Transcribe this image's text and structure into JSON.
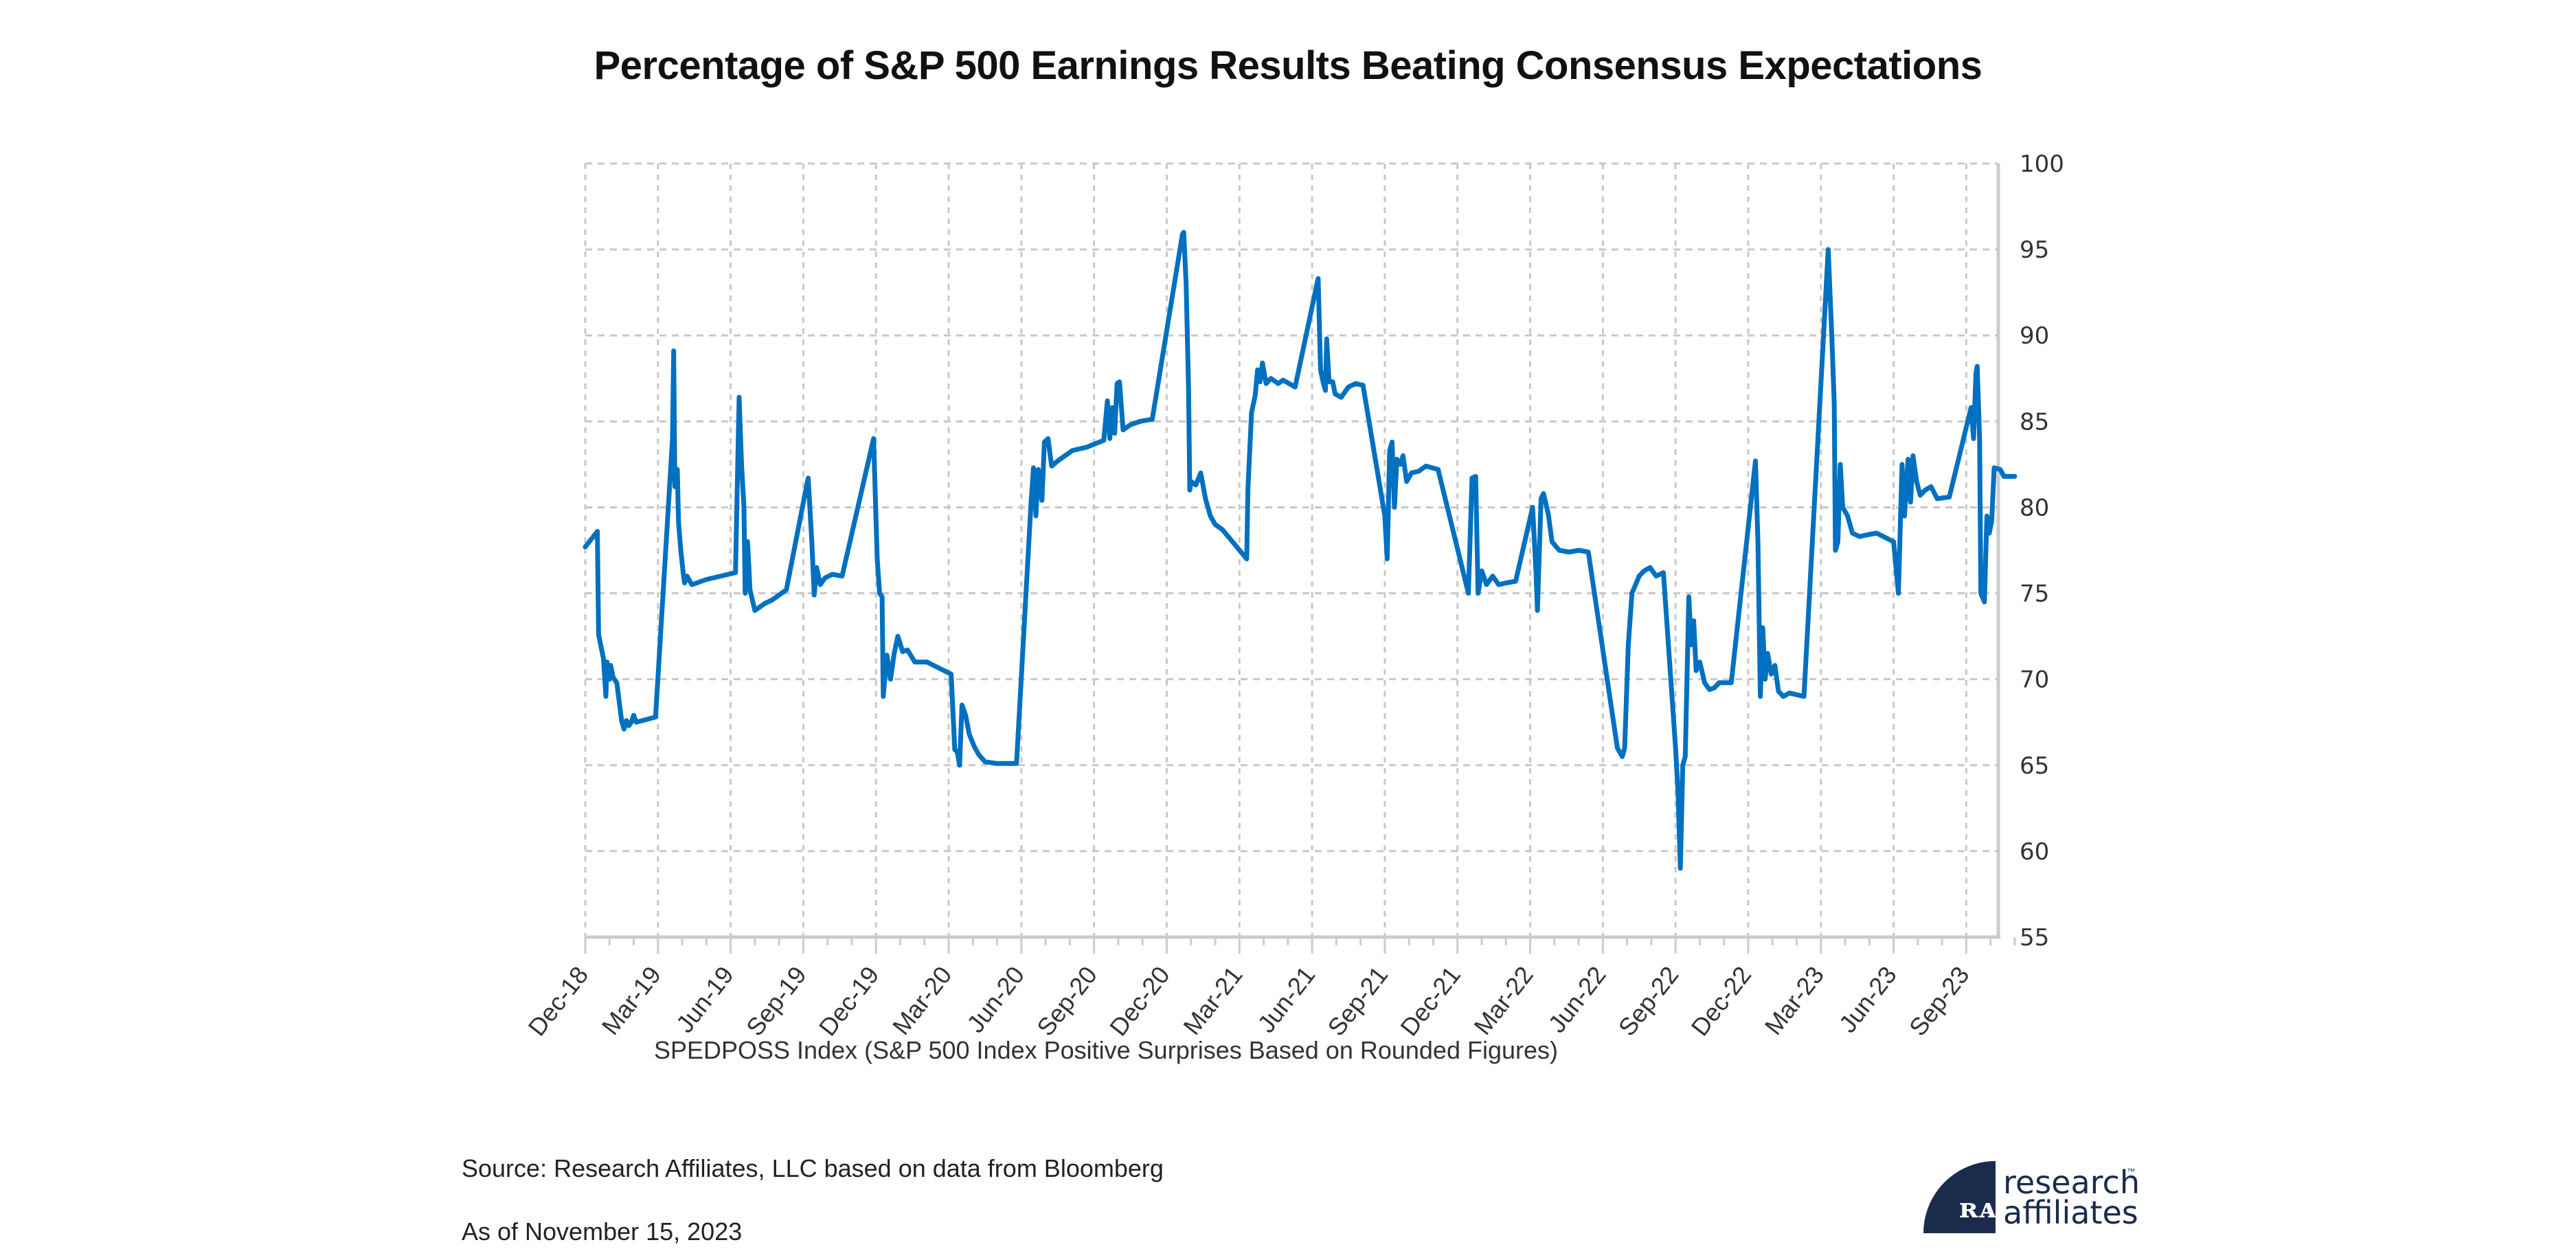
{
  "title": "Percentage of S&P 500 Earnings Results Beating Consensus Expectations",
  "source": "Source: Research Affiliates, LLC based on data from Bloomberg",
  "as_of": "As of November 15, 2023",
  "logo": {
    "line1": "research",
    "line2": "affiliates",
    "tm": "™",
    "mark": "ʀᴀ"
  },
  "colors": {
    "line": "#0070C0",
    "grid": "#C8C8C8",
    "axis": "#CCCCCC",
    "logo": "#1A2B4C"
  },
  "chart_data": {
    "type": "line",
    "title": "Percentage of S&P 500 Earnings Results Beating Consensus Expectations",
    "xlabel": "SPEDPOSS Index (S&P 500 Index Positive Surprises Based on Rounded Figures)",
    "ylabel": "",
    "x_unit": "months since Dec-18",
    "xlim": [
      0,
      59.5
    ],
    "ylim": [
      55,
      100
    ],
    "y_ticks": [
      55,
      60,
      65,
      70,
      75,
      80,
      85,
      90,
      95,
      100
    ],
    "y_axis_position": "right",
    "x_tick_labels": [
      "Dec-18",
      "Mar-19",
      "Jun-19",
      "Sep-19",
      "Dec-19",
      "Mar-20",
      "Jun-20",
      "Sep-20",
      "Dec-20",
      "Mar-21",
      "Jun-21",
      "Sep-21",
      "Dec-21",
      "Mar-22",
      "Jun-22",
      "Sep-22",
      "Dec-22",
      "Mar-23",
      "Jun-23",
      "Sep-23"
    ],
    "x_tick_months": [
      0,
      3,
      6,
      9,
      12,
      15,
      18,
      21,
      24,
      27,
      30,
      33,
      36,
      39,
      42,
      45,
      48,
      51,
      54,
      57
    ],
    "grid": true,
    "legend": "none",
    "series": [
      {
        "name": "SPEDPOSS Index",
        "points": [
          [
            0.0,
            77.7
          ],
          [
            0.5,
            78.6
          ],
          [
            0.55,
            72.6
          ],
          [
            0.75,
            71.2
          ],
          [
            0.85,
            69.0
          ],
          [
            0.9,
            71.0
          ],
          [
            1.0,
            70.0
          ],
          [
            1.05,
            70.8
          ],
          [
            1.15,
            70.1
          ],
          [
            1.3,
            69.8
          ],
          [
            1.5,
            67.6
          ],
          [
            1.6,
            67.1
          ],
          [
            1.7,
            67.6
          ],
          [
            1.8,
            67.3
          ],
          [
            1.9,
            67.5
          ],
          [
            2.0,
            67.9
          ],
          [
            2.1,
            67.5
          ],
          [
            2.9,
            67.8
          ],
          [
            3.6,
            84.0
          ],
          [
            3.65,
            89.1
          ],
          [
            3.7,
            81.2
          ],
          [
            3.8,
            82.2
          ],
          [
            3.85,
            79.1
          ],
          [
            3.95,
            77.4
          ],
          [
            4.05,
            76.1
          ],
          [
            4.1,
            75.6
          ],
          [
            4.2,
            76.0
          ],
          [
            4.4,
            75.5
          ],
          [
            4.6,
            75.6
          ],
          [
            4.8,
            75.7
          ],
          [
            5.0,
            75.8
          ],
          [
            5.3,
            75.9
          ],
          [
            6.2,
            76.2
          ],
          [
            6.3,
            83.0
          ],
          [
            6.35,
            86.4
          ],
          [
            6.45,
            82.5
          ],
          [
            6.55,
            80.0
          ],
          [
            6.6,
            75.0
          ],
          [
            6.7,
            78.0
          ],
          [
            6.8,
            75.2
          ],
          [
            7.0,
            74.0
          ],
          [
            7.2,
            74.2
          ],
          [
            7.4,
            74.4
          ],
          [
            7.7,
            74.6
          ],
          [
            8.3,
            75.2
          ],
          [
            9.1,
            81.0
          ],
          [
            9.2,
            81.7
          ],
          [
            9.35,
            78.0
          ],
          [
            9.45,
            74.9
          ],
          [
            9.55,
            76.5
          ],
          [
            9.7,
            75.5
          ],
          [
            9.9,
            75.9
          ],
          [
            10.2,
            76.1
          ],
          [
            10.6,
            76.0
          ],
          [
            11.9,
            84.0
          ],
          [
            12.05,
            77.0
          ],
          [
            12.15,
            75.0
          ],
          [
            12.25,
            74.8
          ],
          [
            12.3,
            69.0
          ],
          [
            12.45,
            71.4
          ],
          [
            12.6,
            70.0
          ],
          [
            12.75,
            71.5
          ],
          [
            12.9,
            72.5
          ],
          [
            13.1,
            71.6
          ],
          [
            13.3,
            71.7
          ],
          [
            13.6,
            71.0
          ],
          [
            14.1,
            71.0
          ],
          [
            15.1,
            70.3
          ],
          [
            15.25,
            65.9
          ],
          [
            15.35,
            65.8
          ],
          [
            15.45,
            65.0
          ],
          [
            15.55,
            68.5
          ],
          [
            15.7,
            67.9
          ],
          [
            15.85,
            66.8
          ],
          [
            16.05,
            66.1
          ],
          [
            16.25,
            65.6
          ],
          [
            16.5,
            65.2
          ],
          [
            17.0,
            65.1
          ],
          [
            17.8,
            65.1
          ],
          [
            18.4,
            80.3
          ],
          [
            18.5,
            82.3
          ],
          [
            18.6,
            79.5
          ],
          [
            18.7,
            82.2
          ],
          [
            18.85,
            80.4
          ],
          [
            18.95,
            83.8
          ],
          [
            19.1,
            84.0
          ],
          [
            19.25,
            82.4
          ],
          [
            19.5,
            82.7
          ],
          [
            19.8,
            83.0
          ],
          [
            20.1,
            83.3
          ],
          [
            20.7,
            83.5
          ],
          [
            21.4,
            83.9
          ],
          [
            21.55,
            86.2
          ],
          [
            21.65,
            84.0
          ],
          [
            21.75,
            85.8
          ],
          [
            21.85,
            84.3
          ],
          [
            21.95,
            87.2
          ],
          [
            22.05,
            87.3
          ],
          [
            22.2,
            84.5
          ],
          [
            22.5,
            84.8
          ],
          [
            22.9,
            85.0
          ],
          [
            23.3,
            85.1
          ],
          [
            23.4,
            85.1
          ],
          [
            24.65,
            95.9
          ],
          [
            24.7,
            96.0
          ],
          [
            24.8,
            93.0
          ],
          [
            24.9,
            87.0
          ],
          [
            24.95,
            81.0
          ],
          [
            25.0,
            81.5
          ],
          [
            25.2,
            81.3
          ],
          [
            25.4,
            82.0
          ],
          [
            25.6,
            80.5
          ],
          [
            25.8,
            79.5
          ],
          [
            26.0,
            79.0
          ],
          [
            26.3,
            78.7
          ],
          [
            27.3,
            77.0
          ],
          [
            27.35,
            81.0
          ],
          [
            27.5,
            85.5
          ],
          [
            27.65,
            86.5
          ],
          [
            27.75,
            88.0
          ],
          [
            27.85,
            87.3
          ],
          [
            27.95,
            88.4
          ],
          [
            28.1,
            87.2
          ],
          [
            28.3,
            87.5
          ],
          [
            28.6,
            87.2
          ],
          [
            28.8,
            87.4
          ],
          [
            29.3,
            87.0
          ],
          [
            30.2,
            93.0
          ],
          [
            30.25,
            93.3
          ],
          [
            30.35,
            88.0
          ],
          [
            30.45,
            87.3
          ],
          [
            30.55,
            86.8
          ],
          [
            30.6,
            89.8
          ],
          [
            30.7,
            87.3
          ],
          [
            30.85,
            87.3
          ],
          [
            30.95,
            86.6
          ],
          [
            31.2,
            86.4
          ],
          [
            31.5,
            87.0
          ],
          [
            31.8,
            87.2
          ],
          [
            32.1,
            87.1
          ],
          [
            33.0,
            79.5
          ],
          [
            33.1,
            77.0
          ],
          [
            33.2,
            83.3
          ],
          [
            33.3,
            83.8
          ],
          [
            33.4,
            80.0
          ],
          [
            33.5,
            82.8
          ],
          [
            33.65,
            82.5
          ],
          [
            33.75,
            83.0
          ],
          [
            33.9,
            81.5
          ],
          [
            34.1,
            82.0
          ],
          [
            34.4,
            82.1
          ],
          [
            34.7,
            82.4
          ],
          [
            35.2,
            82.2
          ],
          [
            36.45,
            75.0
          ],
          [
            36.6,
            81.7
          ],
          [
            36.75,
            81.8
          ],
          [
            36.85,
            75.0
          ],
          [
            37.0,
            76.3
          ],
          [
            37.2,
            75.5
          ],
          [
            37.45,
            76.0
          ],
          [
            37.7,
            75.5
          ],
          [
            38.0,
            75.6
          ],
          [
            38.4,
            75.7
          ],
          [
            39.1,
            80.0
          ],
          [
            39.25,
            76.0
          ],
          [
            39.3,
            74.0
          ],
          [
            39.45,
            80.5
          ],
          [
            39.55,
            80.8
          ],
          [
            39.75,
            79.6
          ],
          [
            39.9,
            78.0
          ],
          [
            40.2,
            77.5
          ],
          [
            40.6,
            77.4
          ],
          [
            41.0,
            77.5
          ],
          [
            41.4,
            77.4
          ],
          [
            42.6,
            66.0
          ],
          [
            42.8,
            65.5
          ],
          [
            42.9,
            66.0
          ],
          [
            43.0,
            70.0
          ],
          [
            43.05,
            72.0
          ],
          [
            43.2,
            75.0
          ],
          [
            43.35,
            75.5
          ],
          [
            43.5,
            76.0
          ],
          [
            43.7,
            76.3
          ],
          [
            43.95,
            76.5
          ],
          [
            44.2,
            76.0
          ],
          [
            44.5,
            76.2
          ],
          [
            45.0,
            66.0
          ],
          [
            45.1,
            63.5
          ],
          [
            45.2,
            59.0
          ],
          [
            45.3,
            65.0
          ],
          [
            45.4,
            65.5
          ],
          [
            45.55,
            74.8
          ],
          [
            45.65,
            72.0
          ],
          [
            45.75,
            73.4
          ],
          [
            45.85,
            70.5
          ],
          [
            46.0,
            71.0
          ],
          [
            46.2,
            69.8
          ],
          [
            46.4,
            69.4
          ],
          [
            46.6,
            69.5
          ],
          [
            46.8,
            69.8
          ],
          [
            47.3,
            69.8
          ],
          [
            48.3,
            82.7
          ],
          [
            48.4,
            78.0
          ],
          [
            48.5,
            69.0
          ],
          [
            48.6,
            73.0
          ],
          [
            48.7,
            70.0
          ],
          [
            48.8,
            71.5
          ],
          [
            48.95,
            70.3
          ],
          [
            49.1,
            70.8
          ],
          [
            49.25,
            69.3
          ],
          [
            49.45,
            69.0
          ],
          [
            49.7,
            69.2
          ],
          [
            50.3,
            69.0
          ],
          [
            51.3,
            95.0
          ],
          [
            51.45,
            90.0
          ],
          [
            51.55,
            86.0
          ],
          [
            51.6,
            77.5
          ],
          [
            51.7,
            78.0
          ],
          [
            51.8,
            82.5
          ],
          [
            51.9,
            80.0
          ],
          [
            52.1,
            79.5
          ],
          [
            52.3,
            78.5
          ],
          [
            52.6,
            78.3
          ],
          [
            52.9,
            78.4
          ],
          [
            53.3,
            78.5
          ],
          [
            54.0,
            78.0
          ],
          [
            54.2,
            75.0
          ],
          [
            54.35,
            82.5
          ],
          [
            54.45,
            79.5
          ],
          [
            54.6,
            82.8
          ],
          [
            54.7,
            80.3
          ],
          [
            54.8,
            83.0
          ],
          [
            54.95,
            81.5
          ],
          [
            55.1,
            80.7
          ],
          [
            55.3,
            81.0
          ],
          [
            55.55,
            81.2
          ],
          [
            55.8,
            80.5
          ],
          [
            56.3,
            80.6
          ],
          [
            57.2,
            85.8
          ],
          [
            57.3,
            84.0
          ],
          [
            57.4,
            87.8
          ],
          [
            57.45,
            88.2
          ],
          [
            57.55,
            84.0
          ],
          [
            57.6,
            75.0
          ],
          [
            57.75,
            74.5
          ],
          [
            57.85,
            79.5
          ],
          [
            57.95,
            78.5
          ],
          [
            58.05,
            79.2
          ],
          [
            58.15,
            82.3
          ],
          [
            58.4,
            82.2
          ],
          [
            58.55,
            81.8
          ],
          [
            59.0,
            81.8
          ]
        ]
      }
    ]
  }
}
